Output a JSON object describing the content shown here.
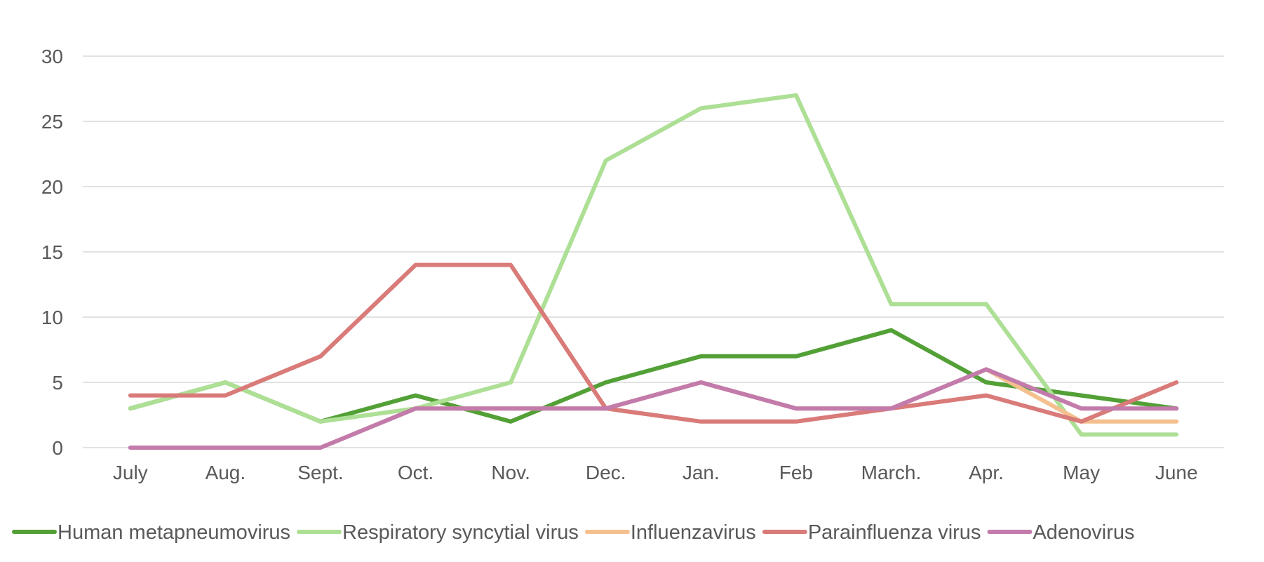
{
  "chart_data": {
    "type": "line",
    "title": "",
    "xlabel": "",
    "ylabel": "",
    "categories": [
      "July",
      "Aug.",
      "Sept.",
      "Oct.",
      "Nov.",
      "Dec.",
      "Jan.",
      "Feb",
      "March.",
      "Apr.",
      "May",
      "June"
    ],
    "ylim": [
      0,
      30
    ],
    "yticks": [
      0,
      5,
      10,
      15,
      20,
      25,
      30
    ],
    "grid": true,
    "legend_position": "bottom",
    "series": [
      {
        "name": "Human metapneumovirus",
        "color": "#52a036",
        "values": [
          3,
          5,
          2,
          4,
          2,
          5,
          7,
          7,
          9,
          5,
          4,
          3
        ]
      },
      {
        "name": "Respiratory syncytial virus",
        "color": "#addf95",
        "values": [
          3,
          5,
          2,
          3,
          5,
          22,
          26,
          27,
          11,
          11,
          1,
          1
        ]
      },
      {
        "name": "Influenzavirus",
        "color": "#f5c08f",
        "values": [
          0,
          0,
          0,
          3,
          3,
          3,
          5,
          3,
          3,
          6,
          2,
          2
        ]
      },
      {
        "name": "Parainfluenza virus",
        "color": "#d97b79",
        "values": [
          4,
          4,
          7,
          14,
          14,
          3,
          2,
          2,
          3,
          4,
          2,
          5
        ]
      },
      {
        "name": "Adenovirus",
        "color": "#c27bab",
        "values": [
          0,
          0,
          0,
          3,
          3,
          3,
          5,
          3,
          3,
          6,
          3,
          3
        ]
      }
    ]
  }
}
